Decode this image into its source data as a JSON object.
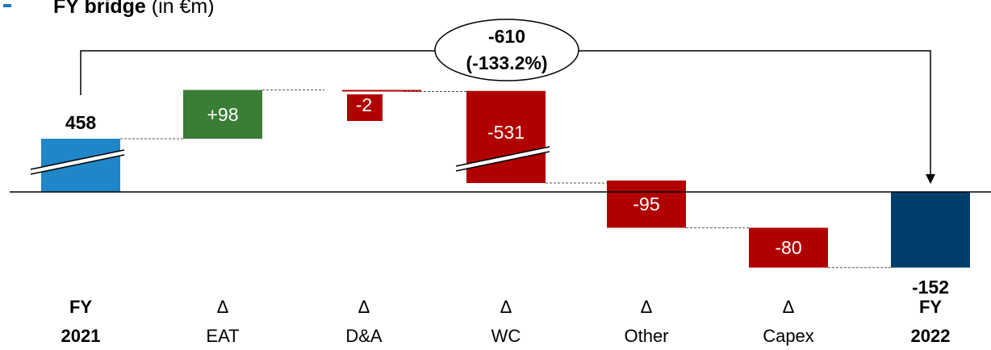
{
  "title": {
    "bold": "FY bridge",
    "rest": " (in €m)"
  },
  "chart_data": {
    "type": "waterfall",
    "categories": [
      {
        "line1": "FY",
        "line2": "2021"
      },
      {
        "line1": "Δ",
        "line2": "EAT"
      },
      {
        "line1": "Δ",
        "line2": "D&A"
      },
      {
        "line1": "Δ",
        "line2": "WC"
      },
      {
        "line1": "Δ",
        "line2": "Other"
      },
      {
        "line1": "Δ",
        "line2": "Capex"
      },
      {
        "line1": "FY",
        "line2": "2022"
      }
    ],
    "bars": [
      {
        "kind": "total",
        "value": 458,
        "label": "458"
      },
      {
        "kind": "delta",
        "value": 98,
        "label": "+98"
      },
      {
        "kind": "delta",
        "value": -2,
        "label": "-2"
      },
      {
        "kind": "delta",
        "value": -531,
        "label": "-531"
      },
      {
        "kind": "delta",
        "value": -95,
        "label": "-95"
      },
      {
        "kind": "delta",
        "value": -80,
        "label": "-80"
      },
      {
        "kind": "total",
        "value": -152,
        "label": "-152"
      }
    ],
    "change": {
      "line1": "-610",
      "line2": "(-133.2%)"
    },
    "axis_breaks": [
      "FY 2021",
      "Δ WC"
    ],
    "colors": {
      "total_start": "#1f86c8",
      "total_end": "#003f6b",
      "positive": "#3a7d34",
      "negative": "#b00000",
      "connector": "#555555"
    }
  }
}
